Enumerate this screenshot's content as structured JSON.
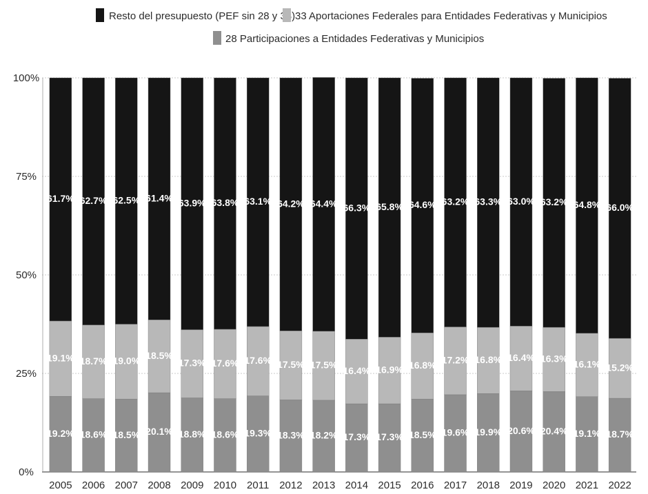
{
  "chart_data": {
    "type": "bar",
    "stacked": true,
    "normalized": true,
    "title": "",
    "xlabel": "",
    "ylabel": "",
    "ylim": [
      0,
      100
    ],
    "y_ticks": [
      "0%",
      "25%",
      "50%",
      "75%",
      "100%"
    ],
    "grid": true,
    "legend_position": "top",
    "categories": [
      "2005",
      "2006",
      "2007",
      "2008",
      "2009",
      "2010",
      "2011",
      "2012",
      "2013",
      "2014",
      "2015",
      "2016",
      "2017",
      "2018",
      "2019",
      "2020",
      "2021",
      "2022"
    ],
    "series": [
      {
        "name": "28 Participaciones a Entidades Federativas y Municipios",
        "values": [
          19.2,
          18.6,
          18.5,
          20.1,
          18.8,
          18.6,
          19.3,
          18.3,
          18.2,
          17.3,
          17.3,
          18.5,
          19.6,
          19.9,
          20.6,
          20.4,
          19.1,
          18.7
        ],
        "labels": [
          "19.2%",
          "18.6%",
          "18.5%",
          "20.1%",
          "18.8%",
          "18.6%",
          "19.3%",
          "18.3%",
          "18.2%",
          "17.3%",
          "17.3%",
          "18.5%",
          "19.6%",
          "19.9%",
          "20.6%",
          "20.4%",
          "19.1%",
          "18.7%"
        ],
        "color": "#8f8f8f"
      },
      {
        "name": "33 Aportaciones Federales para Entidades Federativas y Municipios",
        "values": [
          19.1,
          18.7,
          19.0,
          18.5,
          17.3,
          17.6,
          17.6,
          17.5,
          17.5,
          16.4,
          16.9,
          16.8,
          17.2,
          16.8,
          16.4,
          16.3,
          16.1,
          15.2
        ],
        "labels": [
          "19.1%",
          "18.7%",
          "19.0%",
          "18.5%",
          "17.3%",
          "17.6%",
          "17.6%",
          "17.5%",
          "17.5%",
          "16.4%",
          "16.9%",
          "16.8%",
          "17.2%",
          "16.8%",
          "16.4%",
          "16.3%",
          "16.1%",
          "15.2%"
        ],
        "color": "#b8b8b8"
      },
      {
        "name": "Resto del presupuesto (PEF sin 28 y 33)",
        "values": [
          61.7,
          62.7,
          62.5,
          61.4,
          63.9,
          63.8,
          63.1,
          64.2,
          64.4,
          66.3,
          65.8,
          64.6,
          63.2,
          63.3,
          63.0,
          63.2,
          64.8,
          66.0
        ],
        "labels": [
          "61.7%",
          "62.7%",
          "62.5%",
          "61.4%",
          "63.9%",
          "63.8%",
          "63.1%",
          "64.2%",
          "64.4%",
          "66.3%",
          "65.8%",
          "64.6%",
          "63.2%",
          "63.3%",
          "63.0%",
          "63.2%",
          "64.8%",
          "66.0%"
        ],
        "color": "#151515"
      }
    ],
    "legend": [
      {
        "label": "Resto del presupuesto (PEF sin 28 y 33)",
        "color": "#151515"
      },
      {
        "label": "33 Aportaciones Federales para Entidades Federativas y Municipios",
        "color": "#b8b8b8"
      },
      {
        "label": "28 Participaciones a Entidades Federativas y Municipios",
        "color": "#8f8f8f"
      }
    ]
  }
}
